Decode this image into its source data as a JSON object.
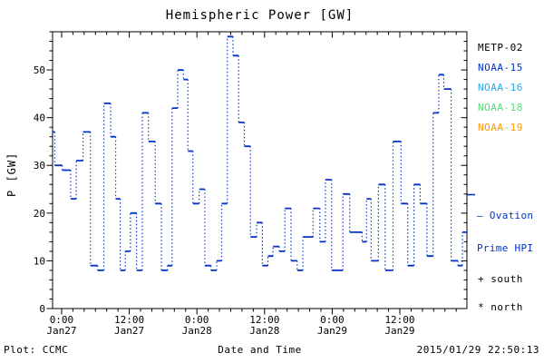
{
  "title": "Hemispheric Power [GW]",
  "footer": {
    "plot_credit": "Plot: CCMC",
    "timestamp": "2015/01/29 22:50:13"
  },
  "legend": {
    "satellites": [
      {
        "label": "METP-02",
        "color": "#000000"
      },
      {
        "label": "NOAA-15",
        "color": "#0033cc"
      },
      {
        "label": "NOAA-16",
        "color": "#22aaee"
      },
      {
        "label": "NOAA-18",
        "color": "#55dd77"
      },
      {
        "label": "NOAA-19",
        "color": "#ff9900"
      }
    ],
    "ovation": {
      "line1": "— Ovation",
      "line2": "Prime HPI",
      "color": "#0033cc"
    },
    "markers": [
      {
        "symbol": "+",
        "label": "south"
      },
      {
        "symbol": "*",
        "label": "north"
      }
    ]
  },
  "chart_data": {
    "type": "line",
    "style": "step",
    "title": "Hemispheric Power [GW]",
    "xlabel": "Date and Time",
    "ylabel": "P [GW]",
    "ylim": [
      0,
      58
    ],
    "y_major_ticks": [
      0,
      10,
      20,
      30,
      40,
      50
    ],
    "y_minor_step": 2,
    "x_hours_range": [
      -1.6,
      71.9
    ],
    "x_hours_epoch": "hours since Jan27 0:00",
    "x_minor_step_hours": 2,
    "x_major_ticks": [
      {
        "t": 0,
        "time": "0:00",
        "date": "Jan27"
      },
      {
        "t": 12,
        "time": "12:00",
        "date": "Jan27"
      },
      {
        "t": 24,
        "time": "0:00",
        "date": "Jan28"
      },
      {
        "t": 36,
        "time": "12:00",
        "date": "Jan28"
      },
      {
        "t": 48,
        "time": "0:00",
        "date": "Jan29"
      },
      {
        "t": 60,
        "time": "12:00",
        "date": "Jan29"
      }
    ],
    "grid": false,
    "legend_position": "right",
    "series_name": "NOAA-15 Hemispheric Power Index",
    "line_color": "#0033cc",
    "steps": [
      [
        -1.6,
        37
      ],
      [
        -1.2,
        30
      ],
      [
        0.1,
        29
      ],
      [
        1.6,
        23
      ],
      [
        2.6,
        31
      ],
      [
        3.8,
        37
      ],
      [
        5.1,
        9
      ],
      [
        6.4,
        8
      ],
      [
        7.5,
        43
      ],
      [
        8.7,
        36
      ],
      [
        9.6,
        23
      ],
      [
        10.4,
        8
      ],
      [
        11.3,
        12
      ],
      [
        12.2,
        20
      ],
      [
        13.3,
        8
      ],
      [
        14.3,
        41
      ],
      [
        15.4,
        35
      ],
      [
        16.6,
        22
      ],
      [
        17.7,
        8
      ],
      [
        18.8,
        9
      ],
      [
        19.6,
        42
      ],
      [
        20.6,
        50
      ],
      [
        21.6,
        48
      ],
      [
        22.4,
        33
      ],
      [
        23.3,
        22
      ],
      [
        24.4,
        25
      ],
      [
        25.4,
        9
      ],
      [
        26.5,
        8
      ],
      [
        27.5,
        10
      ],
      [
        28.4,
        22
      ],
      [
        29.4,
        57
      ],
      [
        30.4,
        53
      ],
      [
        31.4,
        39
      ],
      [
        32.4,
        34
      ],
      [
        33.5,
        15
      ],
      [
        34.6,
        18
      ],
      [
        35.6,
        9
      ],
      [
        36.6,
        11
      ],
      [
        37.5,
        13
      ],
      [
        38.6,
        12
      ],
      [
        39.6,
        21
      ],
      [
        40.7,
        10
      ],
      [
        41.8,
        8
      ],
      [
        42.8,
        15
      ],
      [
        44.6,
        21
      ],
      [
        45.8,
        14
      ],
      [
        46.8,
        27
      ],
      [
        47.9,
        8
      ],
      [
        49.9,
        24
      ],
      [
        51.1,
        16
      ],
      [
        53.3,
        14
      ],
      [
        54.1,
        23
      ],
      [
        54.9,
        10
      ],
      [
        56.2,
        26
      ],
      [
        57.4,
        8
      ],
      [
        58.8,
        35
      ],
      [
        60.2,
        22
      ],
      [
        61.4,
        9
      ],
      [
        62.5,
        26
      ],
      [
        63.6,
        22
      ],
      [
        64.8,
        11
      ],
      [
        65.9,
        41
      ],
      [
        66.9,
        49
      ],
      [
        67.8,
        46
      ],
      [
        69.1,
        10
      ],
      [
        70.3,
        9
      ],
      [
        71.1,
        16
      ]
    ]
  }
}
